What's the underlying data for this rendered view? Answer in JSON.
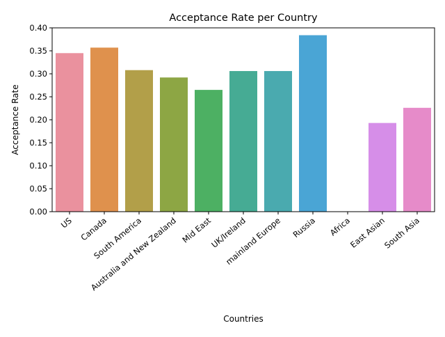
{
  "chart_data": {
    "type": "bar",
    "title": "Acceptance Rate per Country",
    "xlabel": "Countries",
    "ylabel": "Acceptance Rate",
    "categories": [
      "US",
      "Canada",
      "South America",
      "Australia and New Zealand",
      "Mid East",
      "UK/Ireland",
      "mainland Europe",
      "Russia",
      "Africa",
      "East Asian",
      "South Asia"
    ],
    "values": [
      0.345,
      0.357,
      0.308,
      0.292,
      0.265,
      0.306,
      0.306,
      0.384,
      0.0,
      0.193,
      0.226
    ],
    "colors": [
      "#ea919e",
      "#df914d",
      "#b29f49",
      "#8da644",
      "#4db063",
      "#46ab94",
      "#4aaaaf",
      "#4aa5d5",
      "#8b9be8",
      "#d68ee8",
      "#e68bc9"
    ],
    "ylim": [
      0,
      0.4
    ],
    "yticks": [
      "0.00",
      "0.05",
      "0.10",
      "0.15",
      "0.20",
      "0.25",
      "0.30",
      "0.35",
      "0.40"
    ],
    "grid": false,
    "legend": "none"
  }
}
